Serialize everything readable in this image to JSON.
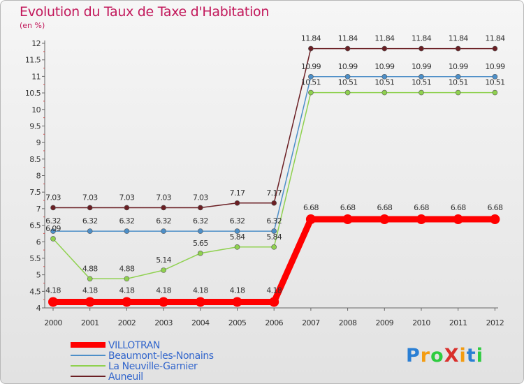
{
  "header": {
    "title": "Evolution du Taux de Taxe d'Habitation",
    "subtitle": "(en %)"
  },
  "logo": {
    "text": "ProXiti"
  },
  "chart_data": {
    "type": "line",
    "title": "Evolution du Taux de Taxe d'Habitation",
    "ylabel": "(en %)",
    "xlabel": "",
    "x": [
      "2000",
      "2001",
      "2002",
      "2003",
      "2004",
      "2005",
      "2006",
      "2007",
      "2008",
      "2009",
      "2010",
      "2011",
      "2012"
    ],
    "ylim": [
      4,
      12
    ],
    "yticks": [
      "4",
      "4.5",
      "5",
      "5.5",
      "6",
      "6.5",
      "7",
      "7.5",
      "8",
      "8.5",
      "9",
      "9.5",
      "10",
      "10.5",
      "11",
      "11.5",
      "12"
    ],
    "grid": false,
    "legend_position": "bottom-left",
    "series": [
      {
        "name": "VILLOTRAN",
        "color": "#ff0000",
        "values": [
          4.18,
          4.18,
          4.18,
          4.18,
          4.18,
          4.18,
          4.18,
          6.68,
          6.68,
          6.68,
          6.68,
          6.68,
          6.68
        ],
        "labels": [
          "4.18",
          "4.18",
          "4.18",
          "4.18",
          "4.18",
          "4.18",
          "4.18",
          "6.68",
          "6.68",
          "6.68",
          "6.68",
          "6.68",
          "6.68"
        ]
      },
      {
        "name": "Beaumont-les-Nonains",
        "color": "#4d8fc8",
        "values": [
          6.32,
          6.32,
          6.32,
          6.32,
          6.32,
          6.32,
          6.32,
          10.99,
          10.99,
          10.99,
          10.99,
          10.99,
          10.99
        ],
        "labels": [
          "6.32",
          "6.32",
          "6.32",
          "6.32",
          "6.32",
          "6.32",
          "6.32",
          "10.99",
          "10.99",
          "10.99",
          "10.99",
          "10.99",
          "10.99"
        ]
      },
      {
        "name": "La Neuville-Garnier",
        "color": "#8fd14f",
        "values": [
          6.09,
          4.88,
          4.88,
          5.14,
          5.65,
          5.84,
          5.84,
          10.51,
          10.51,
          10.51,
          10.51,
          10.51,
          10.51
        ],
        "labels": [
          "6.09",
          "4.88",
          "4.88",
          "5.14",
          "5.65",
          "5.84",
          "5.84",
          "10.51",
          "10.51",
          "10.51",
          "10.51",
          "10.51",
          "10.51"
        ]
      },
      {
        "name": "Auneuil",
        "color": "#6b1f24",
        "values": [
          7.03,
          7.03,
          7.03,
          7.03,
          7.03,
          7.17,
          7.17,
          11.84,
          11.84,
          11.84,
          11.84,
          11.84,
          11.84
        ],
        "labels": [
          "7.03",
          "7.03",
          "7.03",
          "7.03",
          "7.03",
          "7.17",
          "7.17",
          "11.84",
          "11.84",
          "11.84",
          "11.84",
          "11.84",
          "11.84"
        ]
      }
    ]
  }
}
